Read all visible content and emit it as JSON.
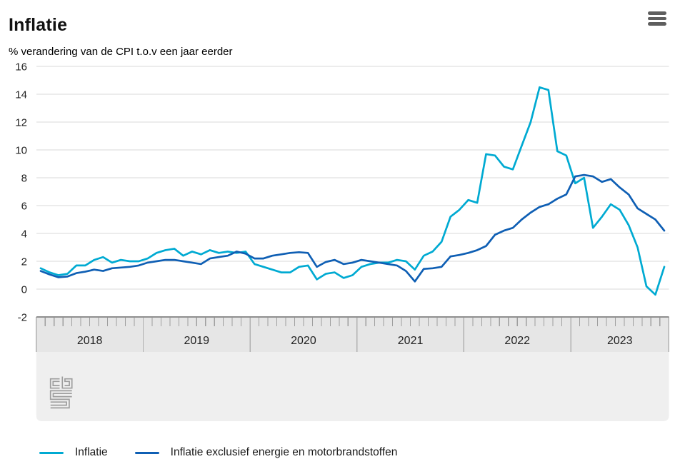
{
  "header": {
    "title": "Inflatie",
    "subtitle": "% verandering van de CPI t.o.v een jaar eerder"
  },
  "menu": {
    "icon": "hamburger-menu-icon"
  },
  "logo": {
    "icon": "cbs-logo"
  },
  "colors": {
    "inflatie": "#00aad2",
    "kerninflatie": "#0f5fb4",
    "grid": "#d9d9d9",
    "axis_line": "#8f8f8f",
    "axis_band": "#e6e6e6",
    "panel": "#efefef",
    "tick": "#9f9f9f",
    "year_divider": "#b1b1b1",
    "text": "#222222",
    "logo_gray": "#9e9e9e"
  },
  "chart_data": {
    "type": "line",
    "title": "Inflatie",
    "subtitle": "% verandering van de CPI t.o.v een jaar eerder",
    "frequency": "monthly",
    "x_start": "2018-01",
    "x_end": "2023-11",
    "year_labels": [
      "2018",
      "2019",
      "2020",
      "2021",
      "2022",
      "2023"
    ],
    "y_ticks": [
      16,
      14,
      12,
      10,
      8,
      6,
      4,
      2,
      0,
      -2
    ],
    "ylim": [
      -2,
      16
    ],
    "grid": true,
    "legend_position": "bottom",
    "series": [
      {
        "name": "Inflatie",
        "color": "#00aad2",
        "values": [
          1.5,
          1.2,
          1.0,
          1.1,
          1.7,
          1.7,
          2.1,
          2.3,
          1.9,
          2.1,
          2.0,
          2.0,
          2.2,
          2.6,
          2.8,
          2.9,
          2.4,
          2.7,
          2.5,
          2.8,
          2.6,
          2.7,
          2.6,
          2.7,
          1.8,
          1.6,
          1.4,
          1.2,
          1.2,
          1.6,
          1.7,
          0.7,
          1.1,
          1.2,
          0.8,
          1.0,
          1.6,
          1.8,
          1.9,
          1.9,
          2.1,
          2.0,
          1.4,
          2.4,
          2.7,
          3.4,
          5.2,
          5.7,
          6.4,
          6.2,
          9.7,
          9.6,
          8.8,
          8.6,
          10.3,
          12.0,
          14.5,
          14.3,
          9.9,
          9.6,
          7.6,
          8.0,
          4.4,
          5.2,
          6.1,
          5.7,
          4.6,
          3.0,
          0.2,
          -0.4,
          1.6
        ]
      },
      {
        "name": "Inflatie exclusief energie en motorbrandstoffen",
        "color": "#0f5fb4",
        "values": [
          1.3,
          1.05,
          0.85,
          0.9,
          1.15,
          1.25,
          1.4,
          1.3,
          1.5,
          1.55,
          1.6,
          1.7,
          1.9,
          2.0,
          2.1,
          2.1,
          2.0,
          1.9,
          1.8,
          2.2,
          2.3,
          2.4,
          2.7,
          2.55,
          2.2,
          2.2,
          2.4,
          2.5,
          2.6,
          2.65,
          2.6,
          1.6,
          1.95,
          2.1,
          1.8,
          1.9,
          2.1,
          2.0,
          1.9,
          1.8,
          1.7,
          1.3,
          0.55,
          1.45,
          1.5,
          1.6,
          2.35,
          2.45,
          2.6,
          2.8,
          3.1,
          3.9,
          4.2,
          4.4,
          5.0,
          5.5,
          5.9,
          6.1,
          6.5,
          6.8,
          8.1,
          8.2,
          8.1,
          7.7,
          7.9,
          7.3,
          6.8,
          5.8,
          5.4,
          5.0,
          4.2
        ]
      }
    ]
  },
  "legend": {
    "items": [
      {
        "label": "Inflatie",
        "color": "#00aad2"
      },
      {
        "label": "Inflatie exclusief energie en motorbrandstoffen",
        "color": "#0f5fb4"
      }
    ]
  }
}
